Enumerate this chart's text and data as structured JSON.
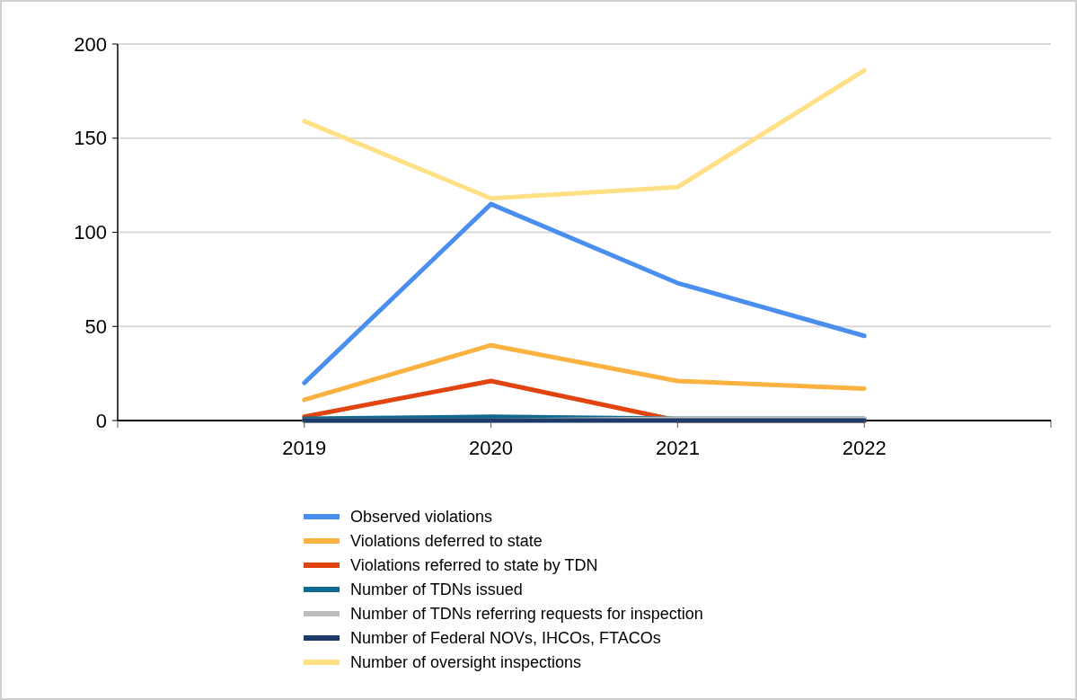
{
  "chart_data": {
    "type": "line",
    "categories": [
      "2019",
      "2020",
      "2021",
      "2022"
    ],
    "ylim": [
      0,
      200
    ],
    "yticks": [
      0,
      50,
      100,
      150,
      200
    ],
    "grid": "y",
    "legend": "bottom",
    "marker": "none",
    "line_style": "solid",
    "series": [
      {
        "name": "Observed violations",
        "color": "#4a8ff0",
        "values": [
          20,
          115,
          73,
          45
        ]
      },
      {
        "name": "Violations deferred to state",
        "color": "#fbb240",
        "values": [
          11,
          40,
          21,
          17
        ]
      },
      {
        "name": "Violations referred to state by TDN",
        "color": "#e2440f",
        "values": [
          2,
          21,
          0,
          0
        ]
      },
      {
        "name": "Number of TDNs issued",
        "color": "#0e6b8f",
        "values": [
          1,
          2,
          1,
          1
        ]
      },
      {
        "name": "Number of TDNs referring requests for inspection",
        "color": "#bdbdbd",
        "values": [
          0,
          0,
          1,
          1
        ]
      },
      {
        "name": "Number of Federal NOVs, IHCOs, FTACOs",
        "color": "#1c3b6b",
        "values": [
          0,
          0,
          0,
          0
        ]
      },
      {
        "name": "Number of oversight inspections",
        "color": "#ffe085",
        "values": [
          159,
          118,
          124,
          186
        ]
      }
    ]
  }
}
